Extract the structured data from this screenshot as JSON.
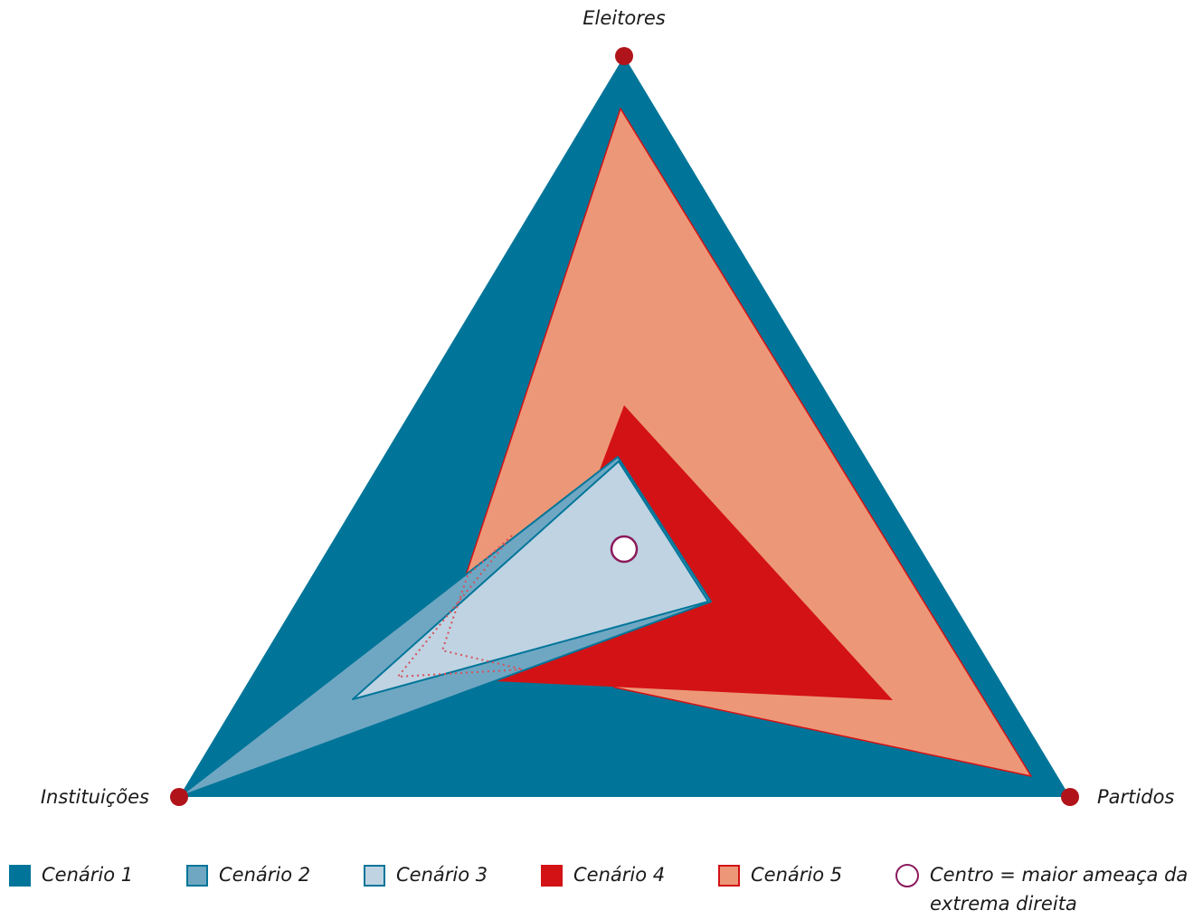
{
  "axes": {
    "top": "Eleitores",
    "left": "Instituições",
    "right": "Partidos"
  },
  "legend": [
    {
      "label": "Cenário 1",
      "fill": "#017599",
      "stroke": "#017599"
    },
    {
      "label": "Cenário 2",
      "fill": "#6fa7c3",
      "stroke": "#017599"
    },
    {
      "label": "Cenário 3",
      "fill": "#bfd3e2",
      "stroke": "#017599"
    },
    {
      "label": "Cenário 4",
      "fill": "#d31216",
      "stroke": "#d31216"
    },
    {
      "label": "Cenário 5",
      "fill": "#ec9878",
      "stroke": "#d31216"
    }
  ],
  "center_note": "Centro = maior ameaça da extrema direita",
  "colors": {
    "vertex_dot": "#b0141a",
    "center_ring": "#8b1a5c",
    "dotted_outline": "#d8505a"
  }
}
